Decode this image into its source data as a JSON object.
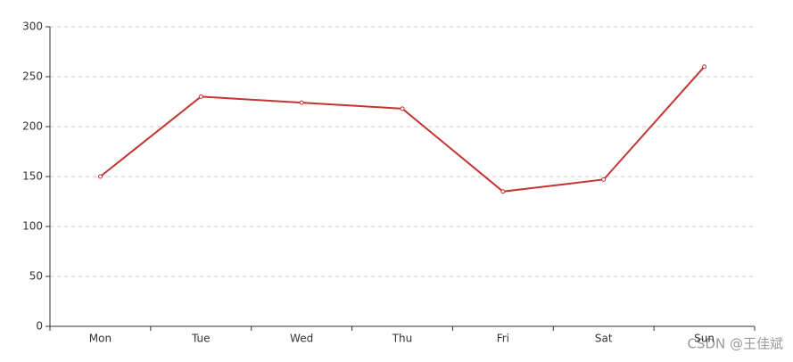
{
  "chart_data": {
    "type": "line",
    "categories": [
      "Mon",
      "Tue",
      "Wed",
      "Thu",
      "Fri",
      "Sat",
      "Sun"
    ],
    "values": [
      150,
      230,
      224,
      218,
      135,
      147,
      260
    ],
    "color": "#c23531",
    "ylim": [
      0,
      300
    ],
    "yticks": [
      0,
      50,
      100,
      150,
      200,
      250,
      300
    ],
    "grid": true,
    "watermark": "CSDN @王佳斌"
  }
}
